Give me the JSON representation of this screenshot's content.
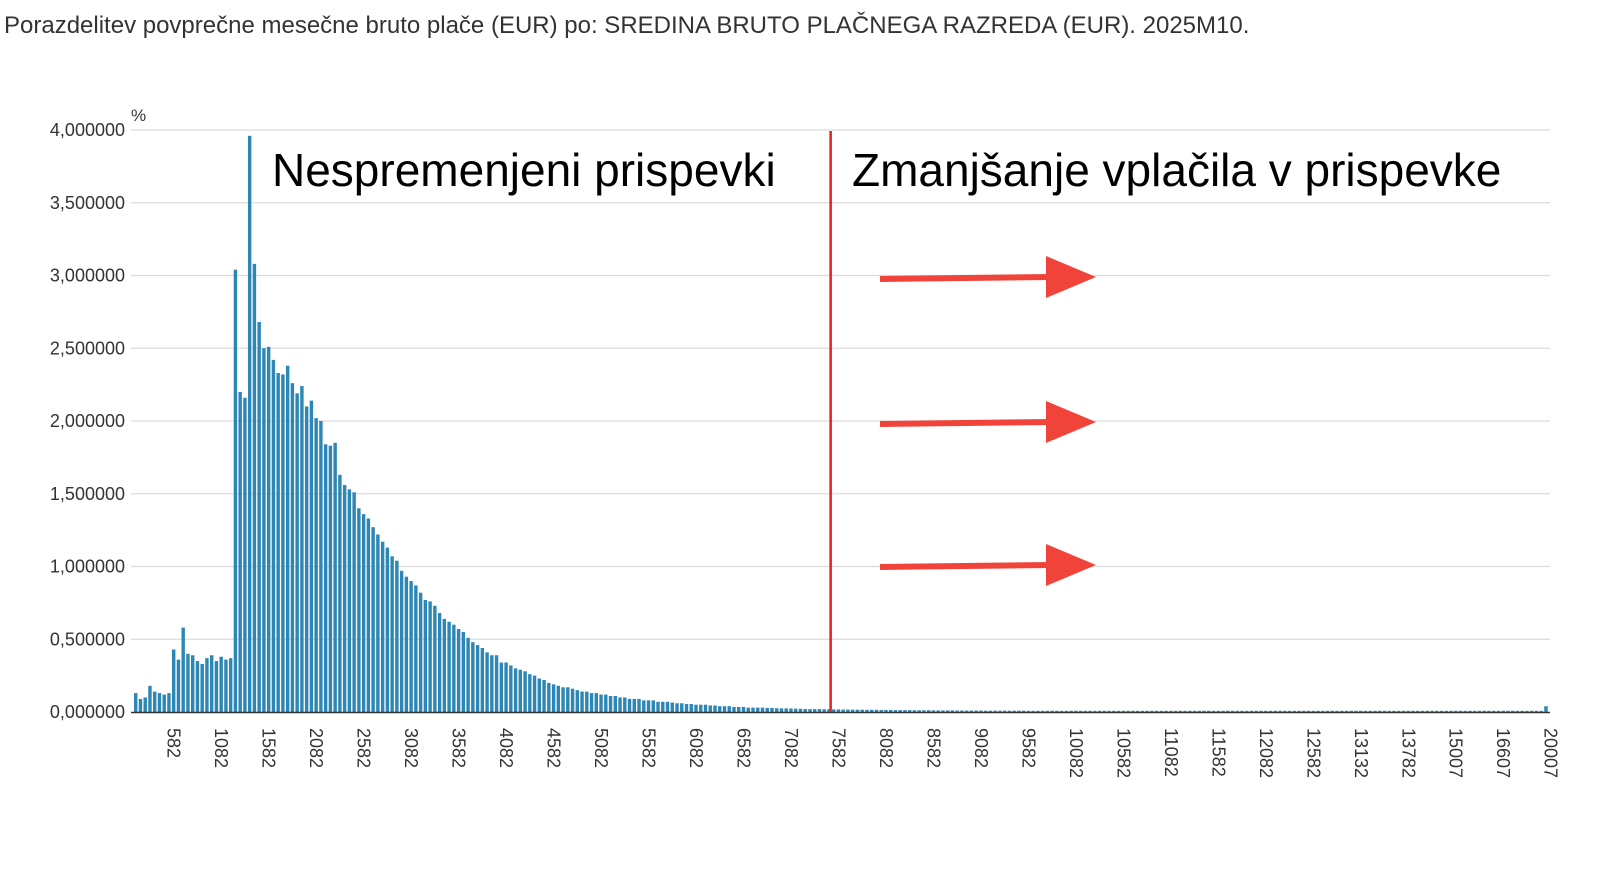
{
  "chart_data": {
    "type": "bar",
    "title": "Porazdelitev povprečne mesečne bruto plače (EUR) po: SREDINA BRUTO PLAČNEGA RAZREDA (EUR). 2025M10.",
    "ylabel": "%",
    "xlabel": "",
    "ylim": [
      0,
      4
    ],
    "y_ticks": [
      "0,000000",
      "0,500000",
      "1,000000",
      "1,500000",
      "2,000000",
      "2,500000",
      "3,000000",
      "3,500000",
      "4,000000"
    ],
    "y_tick_values": [
      0,
      0.5,
      1,
      1.5,
      2,
      2.5,
      3,
      3.5,
      4
    ],
    "x_tick_labels": [
      "582",
      "1082",
      "1582",
      "2082",
      "2582",
      "3082",
      "3582",
      "4082",
      "4582",
      "5082",
      "5582",
      "6082",
      "6582",
      "7082",
      "7582",
      "8082",
      "8582",
      "9082",
      "9582",
      "10082",
      "10582",
      "11082",
      "11582",
      "12082",
      "12582",
      "13132",
      "13782",
      "15007",
      "16607",
      "20007"
    ],
    "x_tick_bar_index": [
      8,
      18,
      28,
      38,
      48,
      58,
      68,
      78,
      88,
      98,
      108,
      118,
      128,
      138,
      148,
      158,
      168,
      178,
      188,
      198,
      208,
      218,
      228,
      238,
      248,
      258,
      268,
      278,
      288,
      298
    ],
    "grid": true,
    "bar_color": "#2e86b4",
    "values": [
      0.13,
      0.09,
      0.1,
      0.18,
      0.14,
      0.13,
      0.12,
      0.13,
      0.43,
      0.36,
      0.58,
      0.4,
      0.39,
      0.35,
      0.33,
      0.37,
      0.39,
      0.35,
      0.38,
      0.36,
      0.37,
      3.04,
      2.2,
      2.16,
      3.96,
      3.08,
      2.68,
      2.5,
      2.51,
      2.42,
      2.33,
      2.32,
      2.38,
      2.26,
      2.19,
      2.24,
      2.1,
      2.14,
      2.02,
      2.0,
      1.84,
      1.83,
      1.85,
      1.63,
      1.56,
      1.53,
      1.51,
      1.4,
      1.36,
      1.33,
      1.27,
      1.22,
      1.17,
      1.13,
      1.07,
      1.04,
      0.97,
      0.93,
      0.9,
      0.87,
      0.82,
      0.77,
      0.76,
      0.73,
      0.68,
      0.64,
      0.62,
      0.6,
      0.57,
      0.55,
      0.51,
      0.48,
      0.46,
      0.44,
      0.41,
      0.39,
      0.39,
      0.34,
      0.34,
      0.32,
      0.3,
      0.29,
      0.28,
      0.26,
      0.25,
      0.23,
      0.22,
      0.2,
      0.19,
      0.18,
      0.17,
      0.17,
      0.16,
      0.15,
      0.14,
      0.14,
      0.13,
      0.13,
      0.12,
      0.12,
      0.11,
      0.11,
      0.1,
      0.1,
      0.09,
      0.09,
      0.09,
      0.08,
      0.08,
      0.08,
      0.07,
      0.07,
      0.07,
      0.065,
      0.06,
      0.06,
      0.055,
      0.055,
      0.05,
      0.05,
      0.05,
      0.045,
      0.045,
      0.04,
      0.04,
      0.04,
      0.035,
      0.035,
      0.035,
      0.03,
      0.03,
      0.03,
      0.03,
      0.028,
      0.028,
      0.026,
      0.025,
      0.025,
      0.024,
      0.023,
      0.022,
      0.021,
      0.02,
      0.02,
      0.02,
      0.019,
      0.019,
      0.018,
      0.018,
      0.017,
      0.017,
      0.016,
      0.016,
      0.016,
      0.015,
      0.015,
      0.015,
      0.014,
      0.014,
      0.014,
      0.013,
      0.013,
      0.013,
      0.013,
      0.012,
      0.012,
      0.012,
      0.012,
      0.011,
      0.011,
      0.011,
      0.011,
      0.011,
      0.01,
      0.01,
      0.01,
      0.01,
      0.01,
      0.01,
      0.009,
      0.009,
      0.009,
      0.009,
      0.009,
      0.009,
      0.009,
      0.009,
      0.009,
      0.008,
      0.008,
      0.008,
      0.008,
      0.008,
      0.008,
      0.008,
      0.008,
      0.008,
      0.008,
      0.008,
      0.008,
      0.008,
      0.008,
      0.008,
      0.008,
      0.008,
      0.008,
      0.008,
      0.008,
      0.008,
      0.008,
      0.008,
      0.008,
      0.008,
      0.008,
      0.008,
      0.008,
      0.008,
      0.008,
      0.008,
      0.008,
      0.008,
      0.008,
      0.008,
      0.008,
      0.008,
      0.008,
      0.008,
      0.008,
      0.008,
      0.008,
      0.008,
      0.008,
      0.008,
      0.008,
      0.008,
      0.008,
      0.008,
      0.008,
      0.008,
      0.008,
      0.008,
      0.008,
      0.008,
      0.008,
      0.008,
      0.008,
      0.008,
      0.008,
      0.008,
      0.008,
      0.008,
      0.008,
      0.008,
      0.008,
      0.008,
      0.008,
      0.008,
      0.008,
      0.008,
      0.008,
      0.008,
      0.008,
      0.008,
      0.008,
      0.008,
      0.008,
      0.008,
      0.008,
      0.008,
      0.008,
      0.008,
      0.008,
      0.008,
      0.008,
      0.008,
      0.008,
      0.008,
      0.008,
      0.008,
      0.008,
      0.008,
      0.008,
      0.008,
      0.008,
      0.008,
      0.008,
      0.008,
      0.008,
      0.008,
      0.008,
      0.008,
      0.008,
      0.008,
      0.008,
      0.008,
      0.008,
      0.008,
      0.04
    ],
    "annotations": [
      {
        "text": "Nespremenjeni prispevki"
      },
      {
        "text": "Zmanjšanje vplačila v prispevke"
      }
    ],
    "divider": {
      "x_bar_index": 146.5,
      "color": "#e02020"
    },
    "arrows": {
      "count": 3,
      "color": "#f0433a",
      "direction": "right"
    }
  }
}
